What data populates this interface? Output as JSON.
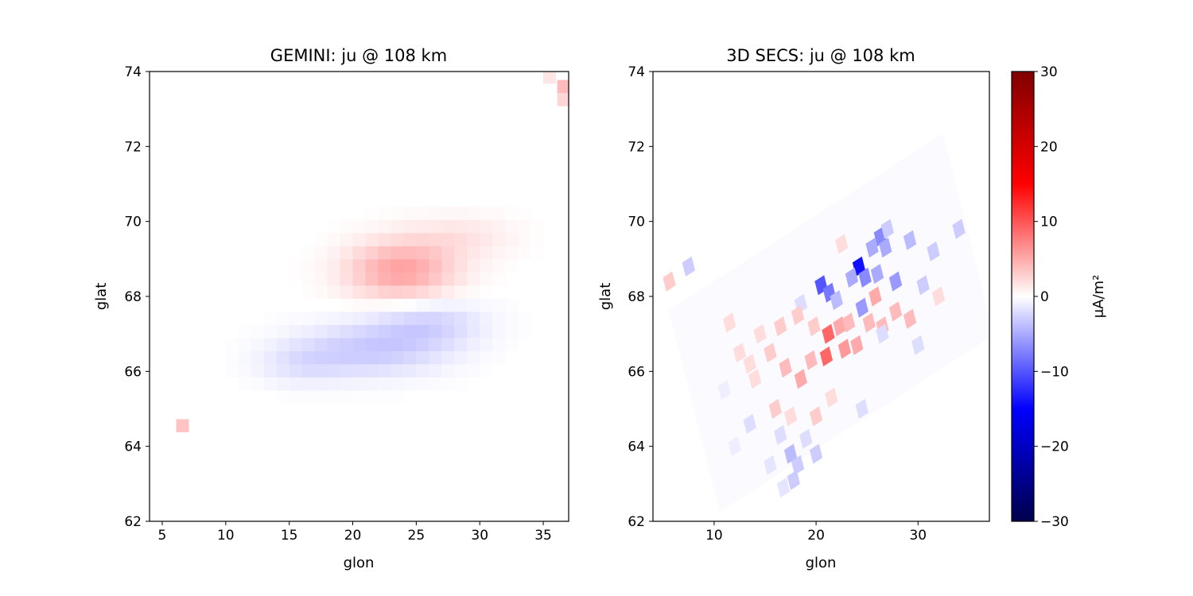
{
  "chart_data": [
    {
      "type": "heatmap",
      "title": "GEMINI: ju @ 108 km",
      "xlabel": "glon",
      "ylabel": "glat",
      "xlim": [
        4,
        37
      ],
      "ylim": [
        62,
        74
      ],
      "xticks": [
        5,
        10,
        15,
        20,
        25,
        30,
        35
      ],
      "yticks": [
        62,
        64,
        66,
        68,
        70,
        72,
        74
      ],
      "grid": false,
      "cell": {
        "dlon": 1.0,
        "dlat": 0.35
      },
      "blobs": [
        {
          "lon": 23.8,
          "lat": 68.7,
          "peak": 5.5,
          "sx": 3.0,
          "sy": 0.55
        },
        {
          "lon": 28.5,
          "lat": 69.6,
          "peak": 1.5,
          "sx": 3.0,
          "sy": 0.4
        },
        {
          "lon": 21.5,
          "lat": 66.6,
          "peak": -3.0,
          "sx": 4.0,
          "sy": 0.5
        },
        {
          "lon": 26.0,
          "lat": 67.3,
          "peak": -2.5,
          "sx": 3.0,
          "sy": 0.45
        },
        {
          "lon": 16.0,
          "lat": 66.2,
          "peak": -1.5,
          "sx": 2.5,
          "sy": 0.4
        }
      ],
      "cells": [
        {
          "lon": 6.6,
          "lat": 64.55,
          "value": 3.5
        },
        {
          "lon": 36.6,
          "lat": 73.6,
          "value": 4.0
        },
        {
          "lon": 36.6,
          "lat": 73.25,
          "value": 2.5
        },
        {
          "lon": 35.5,
          "lat": 73.85,
          "value": 1.5
        }
      ]
    },
    {
      "type": "heatmap",
      "title": "3D SECS: ju @ 108 km",
      "xlabel": "glon",
      "ylabel": "glat",
      "xlim": [
        4,
        37
      ],
      "ylim": [
        62,
        74
      ],
      "xticks": [
        10,
        20,
        30
      ],
      "yticks": [
        62,
        64,
        66,
        68,
        70,
        72,
        74
      ],
      "grid": false,
      "grid_domain": {
        "rotation_deg": 22,
        "center": [
          21.5,
          67.3
        ],
        "half_width": 14.5,
        "half_height": 2.9
      },
      "cell": {
        "dlon": 1.0,
        "dlat": 0.4
      },
      "cells": [
        {
          "lon": 20.5,
          "lat": 68.3,
          "value": -10
        },
        {
          "lon": 21.3,
          "lat": 68.1,
          "value": -8
        },
        {
          "lon": 24.2,
          "lat": 68.8,
          "value": -14
        },
        {
          "lon": 24.8,
          "lat": 68.5,
          "value": -7
        },
        {
          "lon": 23.5,
          "lat": 68.5,
          "value": -5
        },
        {
          "lon": 26.3,
          "lat": 69.6,
          "value": -7
        },
        {
          "lon": 26.8,
          "lat": 69.3,
          "value": -5
        },
        {
          "lon": 25.5,
          "lat": 69.3,
          "value": -5
        },
        {
          "lon": 27.8,
          "lat": 68.4,
          "value": -6
        },
        {
          "lon": 26.0,
          "lat": 68.6,
          "value": -5
        },
        {
          "lon": 24.5,
          "lat": 67.7,
          "value": -6
        },
        {
          "lon": 22.0,
          "lat": 67.9,
          "value": -4
        },
        {
          "lon": 29.2,
          "lat": 69.5,
          "value": -4
        },
        {
          "lon": 31.5,
          "lat": 69.2,
          "value": -3
        },
        {
          "lon": 34.0,
          "lat": 69.8,
          "value": -3
        },
        {
          "lon": 30.5,
          "lat": 68.3,
          "value": -3
        },
        {
          "lon": 27.0,
          "lat": 69.8,
          "value": -3
        },
        {
          "lon": 18.5,
          "lat": 67.8,
          "value": -2
        },
        {
          "lon": 7.5,
          "lat": 68.8,
          "value": -3
        },
        {
          "lon": 21.2,
          "lat": 67.0,
          "value": 9
        },
        {
          "lon": 21.0,
          "lat": 66.4,
          "value": 9
        },
        {
          "lon": 22.8,
          "lat": 66.6,
          "value": 6
        },
        {
          "lon": 22.3,
          "lat": 67.2,
          "value": 5
        },
        {
          "lon": 24.0,
          "lat": 66.7,
          "value": 5
        },
        {
          "lon": 23.2,
          "lat": 67.3,
          "value": 4
        },
        {
          "lon": 25.2,
          "lat": 67.3,
          "value": 4
        },
        {
          "lon": 25.8,
          "lat": 68.0,
          "value": 5
        },
        {
          "lon": 26.5,
          "lat": 67.2,
          "value": 4
        },
        {
          "lon": 27.8,
          "lat": 67.6,
          "value": 4
        },
        {
          "lon": 29.2,
          "lat": 67.4,
          "value": 4
        },
        {
          "lon": 19.5,
          "lat": 66.3,
          "value": 4
        },
        {
          "lon": 17.0,
          "lat": 66.1,
          "value": 4
        },
        {
          "lon": 18.5,
          "lat": 65.8,
          "value": 5
        },
        {
          "lon": 15.5,
          "lat": 66.5,
          "value": 3
        },
        {
          "lon": 16.5,
          "lat": 67.2,
          "value": 3
        },
        {
          "lon": 18.2,
          "lat": 67.5,
          "value": 3
        },
        {
          "lon": 14.5,
          "lat": 67.0,
          "value": 2
        },
        {
          "lon": 13.5,
          "lat": 66.2,
          "value": 2
        },
        {
          "lon": 12.5,
          "lat": 66.5,
          "value": 2
        },
        {
          "lon": 14.0,
          "lat": 65.8,
          "value": 2
        },
        {
          "lon": 16.0,
          "lat": 65.0,
          "value": 3
        },
        {
          "lon": 19.8,
          "lat": 67.2,
          "value": 3
        },
        {
          "lon": 17.5,
          "lat": 64.8,
          "value": 2
        },
        {
          "lon": 20.0,
          "lat": 64.8,
          "value": 3
        },
        {
          "lon": 21.5,
          "lat": 65.3,
          "value": 2
        },
        {
          "lon": 5.6,
          "lat": 68.4,
          "value": 3
        },
        {
          "lon": 11.5,
          "lat": 67.3,
          "value": 2
        },
        {
          "lon": 32.0,
          "lat": 68.0,
          "value": 2
        },
        {
          "lon": 22.5,
          "lat": 69.4,
          "value": 2
        },
        {
          "lon": 17.5,
          "lat": 63.8,
          "value": -4
        },
        {
          "lon": 18.2,
          "lat": 63.5,
          "value": -3
        },
        {
          "lon": 17.8,
          "lat": 63.1,
          "value": -3
        },
        {
          "lon": 20.0,
          "lat": 63.8,
          "value": -3
        },
        {
          "lon": 19.0,
          "lat": 64.2,
          "value": -2
        },
        {
          "lon": 24.5,
          "lat": 65.0,
          "value": -2
        },
        {
          "lon": 16.5,
          "lat": 64.3,
          "value": -2
        },
        {
          "lon": 13.5,
          "lat": 64.6,
          "value": -2
        },
        {
          "lon": 15.5,
          "lat": 63.5,
          "value": -1.5
        },
        {
          "lon": 16.8,
          "lat": 62.9,
          "value": -1.5
        },
        {
          "lon": 26.5,
          "lat": 67.0,
          "value": -2
        },
        {
          "lon": 30.0,
          "lat": 66.7,
          "value": -2
        },
        {
          "lon": 11.0,
          "lat": 65.5,
          "value": -1
        },
        {
          "lon": 12.0,
          "lat": 64.0,
          "value": -1
        }
      ]
    }
  ],
  "colorbar": {
    "label": "μA/m²",
    "vmin": -30,
    "vmax": 30,
    "ticks": [
      30,
      20,
      10,
      0,
      -10,
      -20,
      -30
    ],
    "tick_labels": [
      "30",
      "20",
      "10",
      "0",
      "−10",
      "−20",
      "−30"
    ],
    "colormap": "seismic"
  }
}
